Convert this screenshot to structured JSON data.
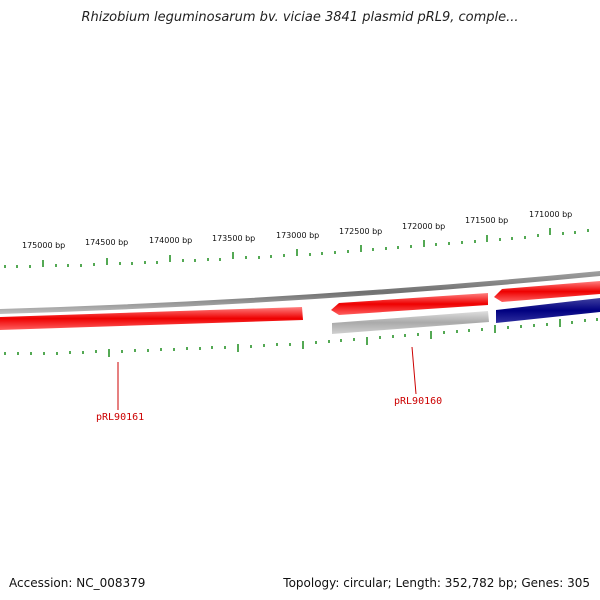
{
  "title": "Rhizobium leguminosarum bv. viciae 3841 plasmid pRL9, comple...",
  "footer": {
    "accession": "Accession: NC_008379",
    "stats": "Topology: circular; Length: 352,782 bp; Genes: 305"
  },
  "ticks": {
    "labels": [
      "175000 bp",
      "174500 bp",
      "174000 bp",
      "173500 bp",
      "173000 bp",
      "172500 bp",
      "172000 bp",
      "171500 bp",
      "171000 bp"
    ],
    "color": "#1a8c1a"
  },
  "genes": [
    {
      "id": "pRL90161",
      "strand": "reverse",
      "color": "#ee0000",
      "label": "pRL90161"
    },
    {
      "id": "pRL90160",
      "strand": "reverse",
      "color": "#ee0000",
      "label": "pRL90160"
    },
    {
      "id": "next-reverse",
      "strand": "reverse",
      "color": "#ee0000",
      "label": ""
    },
    {
      "id": "forward-gray",
      "strand": "forward",
      "color": "#aaaaaa",
      "label": ""
    },
    {
      "id": "forward-navy",
      "strand": "forward",
      "color": "#000080",
      "label": ""
    }
  ],
  "colors": {
    "backbone": "#808080",
    "reverse_gene": "#ee0000",
    "forward_gene_gray": "#aaaaaa",
    "forward_gene_navy": "#000080",
    "label": "#cc0000"
  }
}
